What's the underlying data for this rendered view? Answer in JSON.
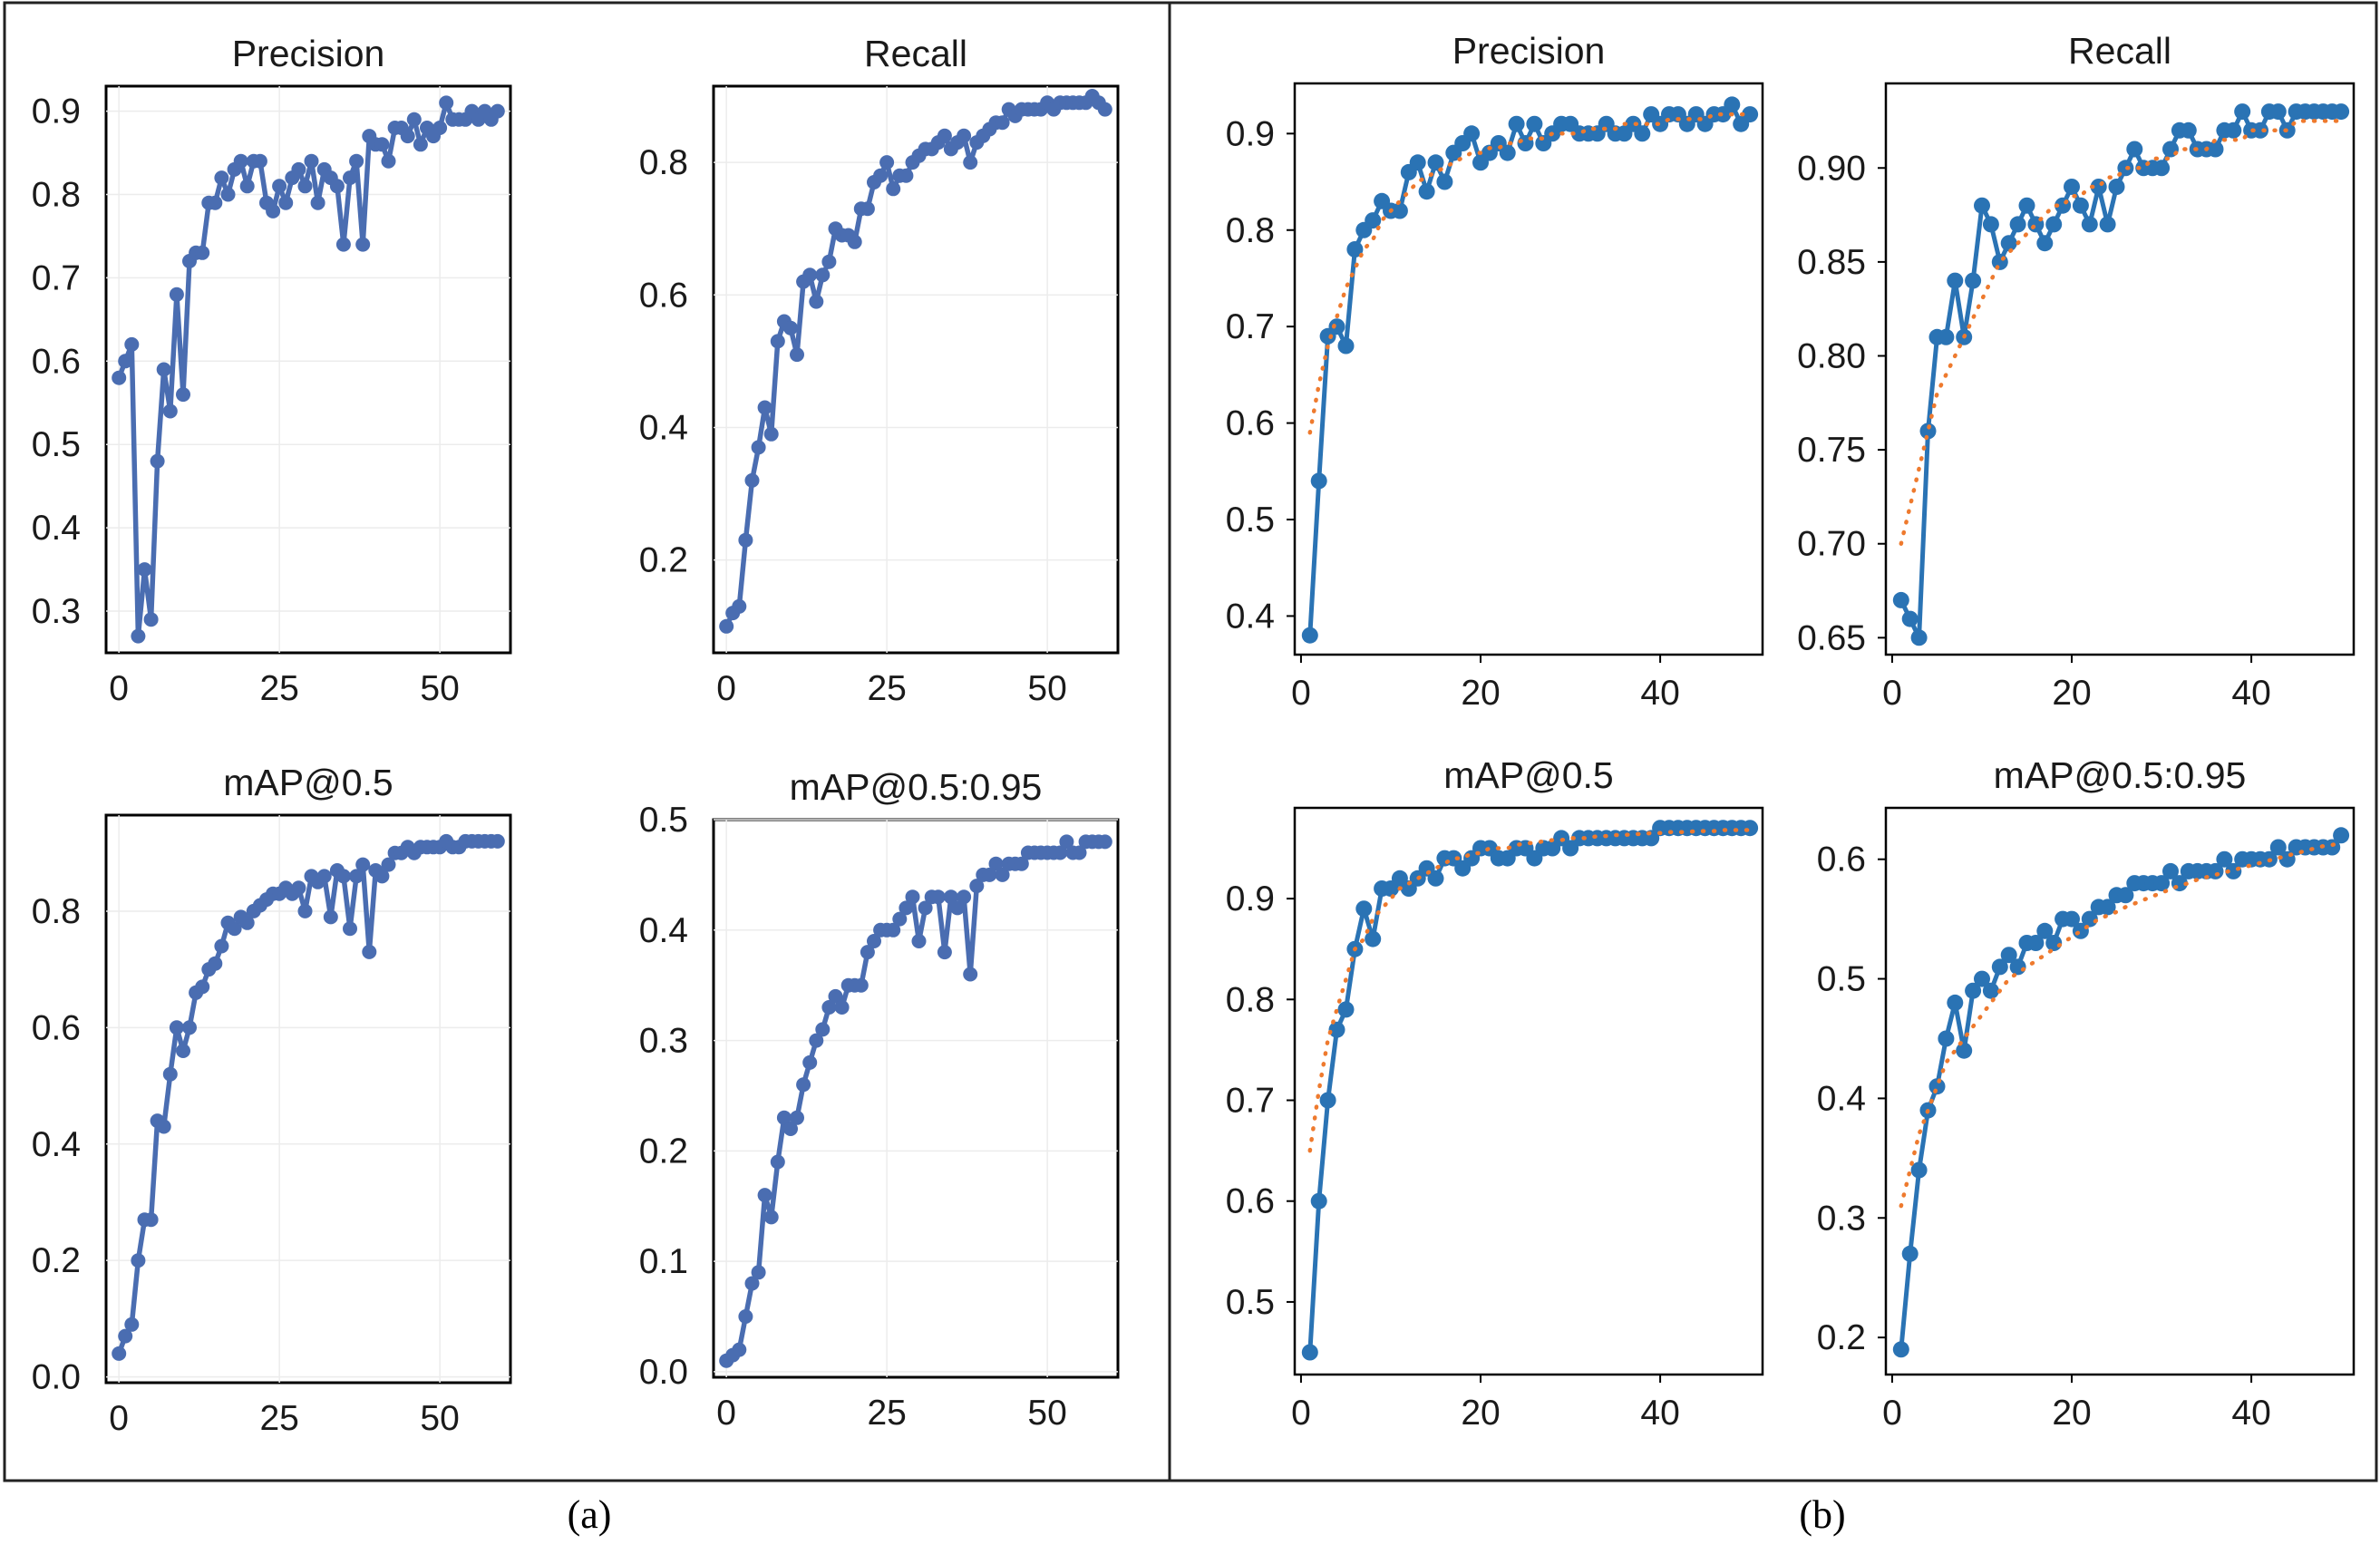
{
  "figure": {
    "captions": [
      "(a)",
      "(b)"
    ],
    "colors": {
      "series_a": "#4a6db1",
      "series_b": "#2a73b4",
      "trend_b": "#ee7a2e"
    }
  },
  "chart_data": [
    {
      "panel": "(a)",
      "type": "line",
      "title": "Precision",
      "xlim": [
        -2,
        61
      ],
      "ylim": [
        0.25,
        0.93
      ],
      "xticks": [
        0,
        25,
        50
      ],
      "yticks": [
        0.3,
        0.4,
        0.5,
        0.6,
        0.7,
        0.8,
        0.9
      ],
      "series": [
        {
          "name": "Precision",
          "color": "#4a6db1",
          "x_start": 0,
          "x_step": 1,
          "values": [
            0.58,
            0.6,
            0.62,
            0.27,
            0.35,
            0.29,
            0.48,
            0.59,
            0.54,
            0.68,
            0.56,
            0.72,
            0.73,
            0.73,
            0.79,
            0.79,
            0.82,
            0.8,
            0.83,
            0.84,
            0.81,
            0.84,
            0.84,
            0.79,
            0.78,
            0.81,
            0.79,
            0.82,
            0.83,
            0.81,
            0.84,
            0.79,
            0.83,
            0.82,
            0.81,
            0.74,
            0.82,
            0.84,
            0.74,
            0.87,
            0.86,
            0.86,
            0.84,
            0.88,
            0.88,
            0.87,
            0.89,
            0.86,
            0.88,
            0.87,
            0.88,
            0.91,
            0.89,
            0.89,
            0.89,
            0.9,
            0.89,
            0.9,
            0.89,
            0.9
          ]
        }
      ]
    },
    {
      "panel": "(a)",
      "type": "line",
      "title": "Recall",
      "xlim": [
        -2,
        61
      ],
      "ylim": [
        0.06,
        0.915
      ],
      "xticks": [
        0,
        25,
        50
      ],
      "yticks": [
        0.2,
        0.4,
        0.6,
        0.8
      ],
      "series": [
        {
          "name": "Recall",
          "color": "#4a6db1",
          "x_start": 0,
          "x_step": 1,
          "values": [
            0.1,
            0.12,
            0.13,
            0.23,
            0.32,
            0.37,
            0.43,
            0.39,
            0.53,
            0.56,
            0.55,
            0.51,
            0.62,
            0.63,
            0.59,
            0.63,
            0.65,
            0.7,
            0.69,
            0.69,
            0.68,
            0.73,
            0.73,
            0.77,
            0.78,
            0.8,
            0.76,
            0.78,
            0.78,
            0.8,
            0.81,
            0.82,
            0.82,
            0.83,
            0.84,
            0.82,
            0.83,
            0.84,
            0.8,
            0.83,
            0.84,
            0.85,
            0.86,
            0.86,
            0.88,
            0.87,
            0.88,
            0.88,
            0.88,
            0.88,
            0.89,
            0.88,
            0.89,
            0.89,
            0.89,
            0.89,
            0.89,
            0.9,
            0.89,
            0.88
          ]
        }
      ]
    },
    {
      "panel": "(a)",
      "type": "line",
      "title": "mAP@0.5",
      "xlim": [
        -2,
        61
      ],
      "ylim": [
        -0.01,
        0.965
      ],
      "xticks": [
        0,
        25,
        50
      ],
      "yticks": [
        0.0,
        0.2,
        0.4,
        0.6,
        0.8
      ],
      "series": [
        {
          "name": "mAP@0.5",
          "color": "#4a6db1",
          "x_start": 0,
          "x_step": 1,
          "values": [
            0.04,
            0.07,
            0.09,
            0.2,
            0.27,
            0.27,
            0.44,
            0.43,
            0.52,
            0.6,
            0.56,
            0.6,
            0.66,
            0.67,
            0.7,
            0.71,
            0.74,
            0.78,
            0.77,
            0.79,
            0.78,
            0.8,
            0.81,
            0.82,
            0.83,
            0.83,
            0.84,
            0.83,
            0.84,
            0.8,
            0.86,
            0.85,
            0.86,
            0.79,
            0.87,
            0.86,
            0.77,
            0.86,
            0.88,
            0.73,
            0.87,
            0.86,
            0.88,
            0.9,
            0.9,
            0.91,
            0.9,
            0.91,
            0.91,
            0.91,
            0.91,
            0.92,
            0.91,
            0.91,
            0.92,
            0.92,
            0.92,
            0.92,
            0.92,
            0.92
          ]
        }
      ]
    },
    {
      "panel": "(a)",
      "type": "line",
      "title": "mAP@0.5:0.95",
      "xlim": [
        -2,
        61
      ],
      "ylim": [
        -0.005,
        0.5
      ],
      "xticks": [
        0,
        25,
        50
      ],
      "yticks": [
        0.0,
        0.1,
        0.2,
        0.3,
        0.4,
        0.5
      ],
      "series": [
        {
          "name": "mAP@0.5:0.95",
          "color": "#4a6db1",
          "x_start": 0,
          "x_step": 1,
          "values": [
            0.01,
            0.015,
            0.02,
            0.05,
            0.08,
            0.09,
            0.16,
            0.14,
            0.19,
            0.23,
            0.22,
            0.23,
            0.26,
            0.28,
            0.3,
            0.31,
            0.33,
            0.34,
            0.33,
            0.35,
            0.35,
            0.35,
            0.38,
            0.39,
            0.4,
            0.4,
            0.4,
            0.41,
            0.42,
            0.43,
            0.39,
            0.42,
            0.43,
            0.43,
            0.38,
            0.43,
            0.42,
            0.43,
            0.36,
            0.44,
            0.45,
            0.45,
            0.46,
            0.45,
            0.46,
            0.46,
            0.46,
            0.47,
            0.47,
            0.47,
            0.47,
            0.47,
            0.47,
            0.48,
            0.47,
            0.47,
            0.48,
            0.48,
            0.48,
            0.48
          ]
        }
      ]
    },
    {
      "panel": "(b)",
      "type": "line",
      "title": "Precision",
      "xlim": [
        -0.7,
        51.4
      ],
      "ylim": [
        0.36,
        0.952
      ],
      "xticks": [
        0,
        20,
        40
      ],
      "yticks": [
        0.4,
        0.5,
        0.6,
        0.7,
        0.8,
        0.9
      ],
      "series": [
        {
          "name": "Precision",
          "color": "#2a73b4",
          "x_start": 1,
          "x_step": 1,
          "values": [
            0.38,
            0.54,
            0.69,
            0.7,
            0.68,
            0.78,
            0.8,
            0.81,
            0.83,
            0.82,
            0.82,
            0.86,
            0.87,
            0.84,
            0.87,
            0.85,
            0.88,
            0.89,
            0.9,
            0.87,
            0.88,
            0.89,
            0.88,
            0.91,
            0.89,
            0.91,
            0.89,
            0.9,
            0.91,
            0.91,
            0.9,
            0.9,
            0.9,
            0.91,
            0.9,
            0.9,
            0.91,
            0.9,
            0.92,
            0.91,
            0.92,
            0.92,
            0.91,
            0.92,
            0.91,
            0.92,
            0.92,
            0.93,
            0.91,
            0.92
          ]
        },
        {
          "name": "Trend",
          "color": "#ee7a2e",
          "style": "dotted",
          "x_start": 1,
          "x_step": 1,
          "values": [
            0.59,
            0.64,
            0.68,
            0.71,
            0.74,
            0.76,
            0.78,
            0.79,
            0.81,
            0.82,
            0.83,
            0.84,
            0.85,
            0.855,
            0.86,
            0.865,
            0.87,
            0.875,
            0.88,
            0.88,
            0.885,
            0.885,
            0.89,
            0.89,
            0.895,
            0.895,
            0.895,
            0.9,
            0.9,
            0.9,
            0.9,
            0.905,
            0.905,
            0.905,
            0.905,
            0.91,
            0.91,
            0.91,
            0.91,
            0.91,
            0.915,
            0.915,
            0.915,
            0.915,
            0.915,
            0.92,
            0.92,
            0.92,
            0.92,
            0.92
          ]
        }
      ]
    },
    {
      "panel": "(b)",
      "type": "line",
      "title": "Recall",
      "xlim": [
        -0.7,
        51.4
      ],
      "ylim": [
        0.641,
        0.945
      ],
      "xticks": [
        0,
        20,
        40
      ],
      "yticks": [
        0.65,
        0.7,
        0.75,
        0.8,
        0.85,
        0.9
      ],
      "series": [
        {
          "name": "Recall",
          "color": "#2a73b4",
          "x_start": 1,
          "x_step": 1,
          "values": [
            0.67,
            0.66,
            0.65,
            0.76,
            0.81,
            0.81,
            0.84,
            0.81,
            0.84,
            0.88,
            0.87,
            0.85,
            0.86,
            0.87,
            0.88,
            0.87,
            0.86,
            0.87,
            0.88,
            0.89,
            0.88,
            0.87,
            0.89,
            0.87,
            0.89,
            0.9,
            0.91,
            0.9,
            0.9,
            0.9,
            0.91,
            0.92,
            0.92,
            0.91,
            0.91,
            0.91,
            0.92,
            0.92,
            0.93,
            0.92,
            0.92,
            0.93,
            0.93,
            0.92,
            0.93,
            0.93,
            0.93,
            0.93,
            0.93,
            0.93
          ]
        },
        {
          "name": "Trend",
          "color": "#ee7a2e",
          "style": "dotted",
          "x_start": 1,
          "x_step": 1,
          "values": [
            0.7,
            0.72,
            0.74,
            0.76,
            0.78,
            0.79,
            0.8,
            0.81,
            0.82,
            0.83,
            0.84,
            0.85,
            0.855,
            0.86,
            0.865,
            0.87,
            0.875,
            0.88,
            0.88,
            0.885,
            0.885,
            0.89,
            0.89,
            0.895,
            0.895,
            0.9,
            0.9,
            0.9,
            0.905,
            0.905,
            0.905,
            0.91,
            0.91,
            0.91,
            0.91,
            0.915,
            0.915,
            0.915,
            0.915,
            0.92,
            0.92,
            0.92,
            0.92,
            0.92,
            0.925,
            0.925,
            0.925,
            0.925,
            0.925,
            0.925
          ]
        }
      ]
    },
    {
      "panel": "(b)",
      "type": "line",
      "title": "mAP@0.5",
      "xlim": [
        -0.7,
        51.4
      ],
      "ylim": [
        0.428,
        0.99
      ],
      "xticks": [
        0,
        20,
        40
      ],
      "yticks": [
        0.5,
        0.6,
        0.7,
        0.8,
        0.9
      ],
      "series": [
        {
          "name": "mAP@0.5",
          "color": "#2a73b4",
          "x_start": 1,
          "x_step": 1,
          "values": [
            0.45,
            0.6,
            0.7,
            0.77,
            0.79,
            0.85,
            0.89,
            0.86,
            0.91,
            0.91,
            0.92,
            0.91,
            0.92,
            0.93,
            0.92,
            0.94,
            0.94,
            0.93,
            0.94,
            0.95,
            0.95,
            0.94,
            0.94,
            0.95,
            0.95,
            0.94,
            0.95,
            0.95,
            0.96,
            0.95,
            0.96,
            0.96,
            0.96,
            0.96,
            0.96,
            0.96,
            0.96,
            0.96,
            0.96,
            0.97,
            0.97,
            0.97,
            0.97,
            0.97,
            0.97,
            0.97,
            0.97,
            0.97,
            0.97,
            0.97
          ]
        },
        {
          "name": "Trend",
          "color": "#ee7a2e",
          "style": "dotted",
          "x_start": 1,
          "x_step": 1,
          "values": [
            0.65,
            0.71,
            0.76,
            0.79,
            0.82,
            0.85,
            0.86,
            0.88,
            0.89,
            0.9,
            0.91,
            0.915,
            0.92,
            0.925,
            0.93,
            0.935,
            0.94,
            0.94,
            0.945,
            0.945,
            0.95,
            0.95,
            0.95,
            0.953,
            0.955,
            0.955,
            0.957,
            0.958,
            0.958,
            0.96,
            0.96,
            0.96,
            0.962,
            0.962,
            0.963,
            0.963,
            0.964,
            0.964,
            0.965,
            0.965,
            0.966,
            0.966,
            0.966,
            0.967,
            0.967,
            0.967,
            0.968,
            0.968,
            0.968,
            0.968
          ]
        }
      ]
    },
    {
      "panel": "(b)",
      "type": "line",
      "title": "mAP@0.5:0.95",
      "xlim": [
        -0.7,
        51.4
      ],
      "ylim": [
        0.169,
        0.643
      ],
      "xticks": [
        0,
        20,
        40
      ],
      "yticks": [
        0.2,
        0.3,
        0.4,
        0.5,
        0.6
      ],
      "series": [
        {
          "name": "mAP@0.5:0.95",
          "color": "#2a73b4",
          "x_start": 1,
          "x_step": 1,
          "values": [
            0.19,
            0.27,
            0.34,
            0.39,
            0.41,
            0.45,
            0.48,
            0.44,
            0.49,
            0.5,
            0.49,
            0.51,
            0.52,
            0.51,
            0.53,
            0.53,
            0.54,
            0.53,
            0.55,
            0.55,
            0.54,
            0.55,
            0.56,
            0.56,
            0.57,
            0.57,
            0.58,
            0.58,
            0.58,
            0.58,
            0.59,
            0.58,
            0.59,
            0.59,
            0.59,
            0.59,
            0.6,
            0.59,
            0.6,
            0.6,
            0.6,
            0.6,
            0.61,
            0.6,
            0.61,
            0.61,
            0.61,
            0.61,
            0.61,
            0.62
          ]
        },
        {
          "name": "Trend",
          "color": "#ee7a2e",
          "style": "dotted",
          "x_start": 1,
          "x_step": 1,
          "values": [
            0.31,
            0.34,
            0.37,
            0.39,
            0.41,
            0.43,
            0.44,
            0.45,
            0.46,
            0.47,
            0.48,
            0.49,
            0.5,
            0.505,
            0.51,
            0.515,
            0.52,
            0.525,
            0.53,
            0.535,
            0.54,
            0.545,
            0.55,
            0.553,
            0.556,
            0.56,
            0.563,
            0.566,
            0.569,
            0.572,
            0.575,
            0.578,
            0.58,
            0.583,
            0.585,
            0.587,
            0.589,
            0.591,
            0.593,
            0.595,
            0.597,
            0.599,
            0.601,
            0.603,
            0.605,
            0.607,
            0.609,
            0.611,
            0.612,
            0.614
          ]
        }
      ]
    }
  ]
}
